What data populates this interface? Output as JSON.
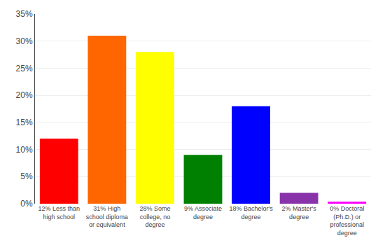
{
  "chart_data": {
    "type": "bar",
    "categories": [
      "12% Less than\nhigh school",
      "31% High\nschool diploma\nor equivalent",
      "28% Some\ncollege, no\ndegree",
      "9% Associate\ndegree",
      "18% Bachelor's\ndegree",
      "2% Master's\ndegree",
      "0% Doctoral\n(Ph.D.) or\nprofessional\ndegree"
    ],
    "values": [
      12,
      31,
      28,
      9,
      18,
      2,
      0.4
    ],
    "colors": [
      "#ff0000",
      "#ff6600",
      "#ffff00",
      "#008000",
      "#0000ff",
      "#8833aa",
      "#ff00ff"
    ],
    "ylim": [
      0,
      35
    ],
    "yticks": [
      {
        "value": 0,
        "label": "0%"
      },
      {
        "value": 5,
        "label": "5%"
      },
      {
        "value": 10,
        "label": "10%"
      },
      {
        "value": 15,
        "label": "15%"
      },
      {
        "value": 20,
        "label": "20%"
      },
      {
        "value": 25,
        "label": "25%"
      },
      {
        "value": 30,
        "label": "30%"
      },
      {
        "value": 35,
        "label": "35%"
      }
    ],
    "grid": true
  }
}
